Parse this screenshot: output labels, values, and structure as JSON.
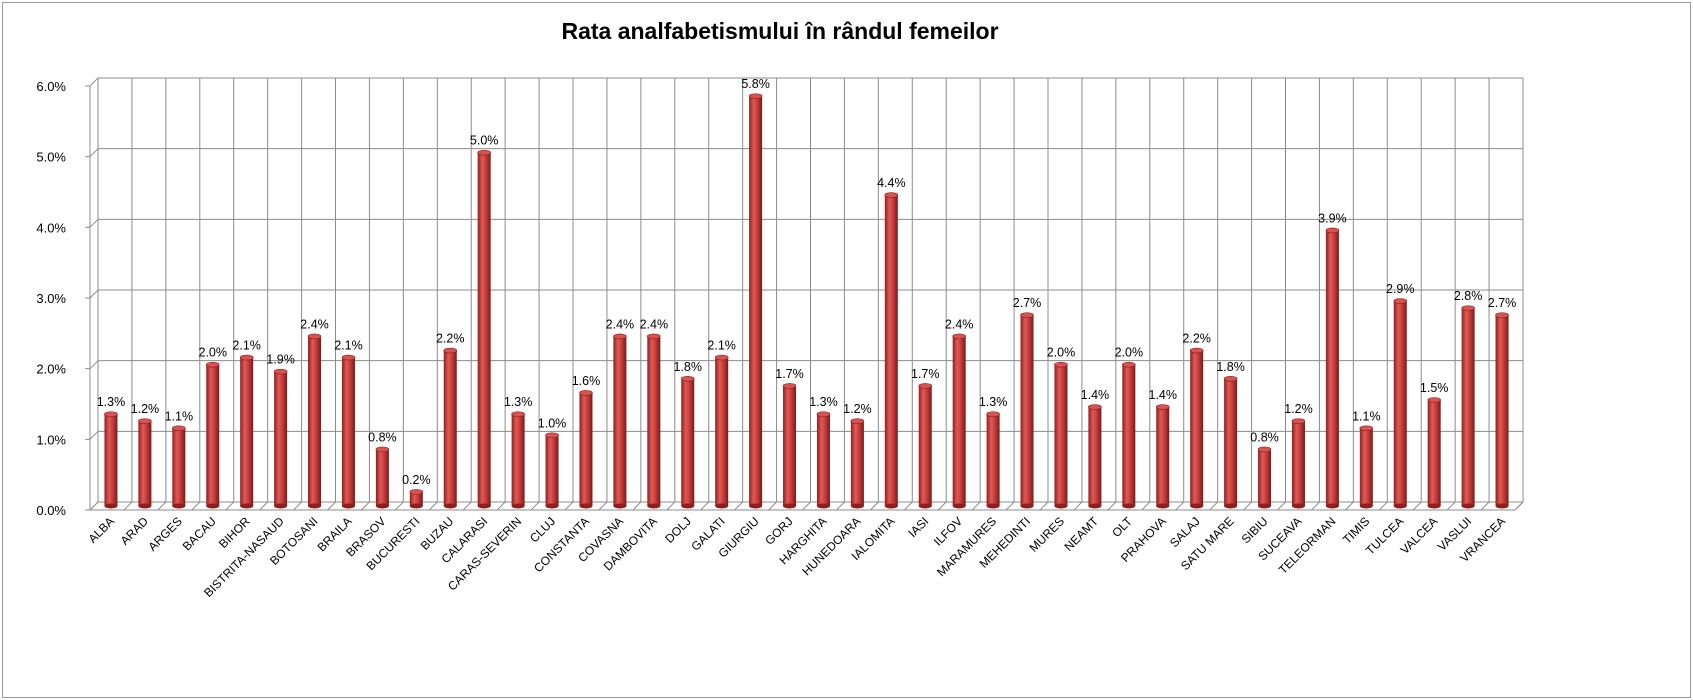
{
  "chart_data": {
    "type": "bar",
    "title": "Rata analfabetismului în rândul femeilor",
    "xlabel": "",
    "ylabel": "",
    "ylim": [
      0,
      6
    ],
    "yticks": [
      "0.0%",
      "1.0%",
      "2.0%",
      "3.0%",
      "4.0%",
      "5.0%",
      "6.0%"
    ],
    "grid": true,
    "legend": "none",
    "bar_color": "#c0302f",
    "categories": [
      "ALBA",
      "ARAD",
      "ARGES",
      "BACAU",
      "BIHOR",
      "BISTRITA-NASAUD",
      "BOTOSANI",
      "BRAILA",
      "BRASOV",
      "BUCURESTI",
      "BUZAU",
      "CALARASI",
      "CARAS-SEVERIN",
      "CLUJ",
      "CONSTANTA",
      "COVASNA",
      "DAMBOVITA",
      "DOLJ",
      "GALATI",
      "GIURGIU",
      "GORJ",
      "HARGHITA",
      "HUNEDOARA",
      "IALOMITA",
      "IASI",
      "ILFOV",
      "MARAMURES",
      "MEHEDINTI",
      "MURES",
      "NEAMT",
      "OLT",
      "PRAHOVA",
      "SALAJ",
      "SATU MARE",
      "SIBIU",
      "SUCEAVA",
      "TELEORMAN",
      "TIMIS",
      "TULCEA",
      "VALCEA",
      "VASLUI",
      "VRANCEA"
    ],
    "values": [
      1.3,
      1.2,
      1.1,
      2.0,
      2.1,
      1.9,
      2.4,
      2.1,
      0.8,
      0.2,
      2.2,
      5.0,
      1.3,
      1.0,
      1.6,
      2.4,
      2.4,
      1.8,
      2.1,
      5.8,
      1.7,
      1.3,
      1.2,
      4.4,
      1.7,
      2.4,
      1.3,
      2.7,
      2.0,
      1.4,
      2.0,
      1.4,
      2.2,
      1.8,
      0.8,
      1.2,
      3.9,
      1.1,
      2.9,
      1.5,
      2.8,
      2.7
    ],
    "data_labels": [
      "1.3%",
      "1.2%",
      "1.1%",
      "2.0%",
      "2.1%",
      "1.9%",
      "2.4%",
      "2.1%",
      "0.8%",
      "0.2%",
      "2.2%",
      "5.0%",
      "1.3%",
      "1.0%",
      "1.6%",
      "2.4%",
      "2.4%",
      "1.8%",
      "2.1%",
      "5.8%",
      "1.7%",
      "1.3%",
      "1.2%",
      "4.4%",
      "1.7%",
      "2.4%",
      "1.3%",
      "2.7%",
      "2.0%",
      "1.4%",
      "2.0%",
      "1.4%",
      "2.2%",
      "1.8%",
      "0.8%",
      "1.2%",
      "3.9%",
      "1.1%",
      "2.9%",
      "1.5%",
      "2.8%",
      "2.7%"
    ]
  }
}
